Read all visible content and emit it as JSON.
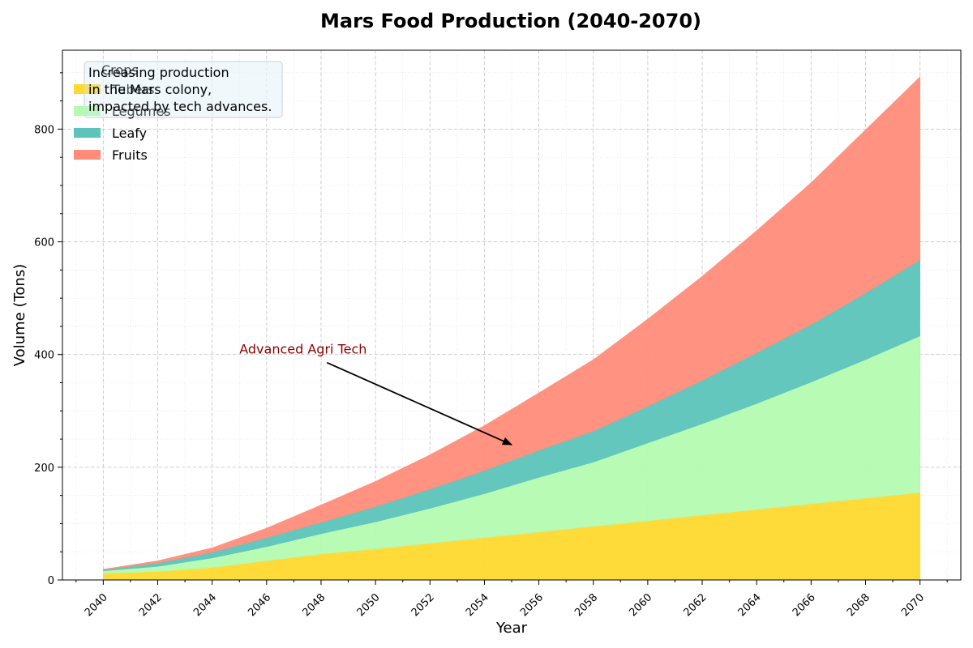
{
  "chart_data": {
    "type": "area",
    "stacked": true,
    "title": "Mars Food Production (2040-2070)",
    "xlabel": "Year",
    "ylabel": "Volume (Tons)",
    "xlim": [
      2038.5,
      2071.5
    ],
    "ylim": [
      0,
      940
    ],
    "x_ticks": [
      2040,
      2042,
      2044,
      2046,
      2048,
      2050,
      2052,
      2054,
      2056,
      2058,
      2060,
      2062,
      2064,
      2066,
      2068,
      2070
    ],
    "y_ticks": [
      0,
      200,
      400,
      600,
      800
    ],
    "grid": true,
    "legend_title": "Crops",
    "legend_position": "top-left",
    "x": [
      2040,
      2042,
      2044,
      2046,
      2048,
      2050,
      2052,
      2054,
      2056,
      2058,
      2060,
      2062,
      2064,
      2066,
      2068,
      2070
    ],
    "series": [
      {
        "name": "Tubers",
        "color": "#FFD92F",
        "values": [
          12,
          15,
          22,
          34,
          46,
          55,
          65,
          75,
          85,
          95,
          105,
          115,
          125,
          135,
          145,
          155
        ]
      },
      {
        "name": "Legumes",
        "color": "#B3FBB0",
        "values": [
          4,
          9,
          17,
          25,
          36,
          48,
          62,
          78,
          97,
          114,
          138,
          162,
          188,
          216,
          246,
          278
        ]
      },
      {
        "name": "Leafy",
        "color": "#5CC4BB",
        "values": [
          2,
          6,
          10,
          16,
          20,
          27,
          34,
          41,
          48,
          55,
          65,
          77,
          90,
          102,
          118,
          135
        ]
      },
      {
        "name": "Fruits",
        "color": "#FF8C79",
        "values": [
          1,
          4,
          8,
          17,
          31,
          45,
          61,
          80,
          102,
          127,
          155,
          185,
          217,
          252,
          290,
          325
        ]
      }
    ],
    "annotations": [
      {
        "text": "Advanced Agri Tech",
        "text_x": 2045,
        "text_y": 400,
        "arrow_x": 2055,
        "arrow_y": 240,
        "color": "#8b0000"
      }
    ],
    "note": {
      "lines": [
        "Increasing production",
        "in the Mars colony,",
        "impacted by tech advances."
      ],
      "position": "top-left"
    }
  }
}
